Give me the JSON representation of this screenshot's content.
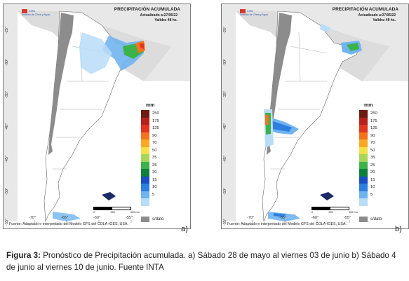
{
  "panels": [
    {
      "id": "a",
      "title": "PRECIPITACIÓN ACUMULADA",
      "updated": "Actualizado a:27/05/22",
      "validity": "Validez 48 hs.",
      "logo_name": "CIRN",
      "logo_text": "Instituto de Clima y Agua",
      "source": "Fuente: Adaptado e interpretado del Modelo GFS del COLA-IGES, USA.",
      "letter": "a)"
    },
    {
      "id": "b",
      "title": "PRECIPITACIÓN ACUMULADA",
      "updated": "Actualizado a:27/05/22",
      "validity": "Validez 48 hs.",
      "logo_name": "CIRN",
      "logo_text": "Instituto de Clima y Agua",
      "source": "Fuente: Adaptado e interpretado del Modelo GFS del COLA-IGES, USA.",
      "letter": "b)"
    }
  ],
  "legend": {
    "unit": "mm",
    "classes": [
      {
        "label": "250",
        "color": "#6b1d12"
      },
      {
        "label": "175",
        "color": "#b5221c"
      },
      {
        "label": "125",
        "color": "#e2351f"
      },
      {
        "label": "90",
        "color": "#f4731e"
      },
      {
        "label": "70",
        "color": "#f9a824"
      },
      {
        "label": "50",
        "color": "#f4e04a"
      },
      {
        "label": "35",
        "color": "#a7d65a"
      },
      {
        "label": "25",
        "color": "#3bb24a"
      },
      {
        "label": "20",
        "color": "#0f7f3c"
      },
      {
        "label": "15",
        "color": "#1a4fc4"
      },
      {
        "label": "10",
        "color": "#2e7de0"
      },
      {
        "label": "5",
        "color": "#6fb4f0"
      },
      {
        "label": "",
        "color": "#b9dcf7"
      }
    ],
    "no_data_label": "s/dato",
    "no_data_color": "#8c8c8c"
  },
  "lat_labels": [
    "-25°",
    "-30°",
    "-35°",
    "-40°",
    "-45°",
    "-50°",
    "-55°"
  ],
  "lon_labels": [
    "-70°",
    "-65°",
    "-60°",
    "-55°"
  ],
  "scale_labels": [
    "0",
    "250",
    "500 Km"
  ],
  "caption": {
    "bold": "Figura 3:",
    "text": " Pronóstico de Precipitación acumulada. a) Sábado 28 de mayo al viernes  03 de junio b) Sábado 4 de junio al viernes  10 de junio. Fuente INTA"
  }
}
